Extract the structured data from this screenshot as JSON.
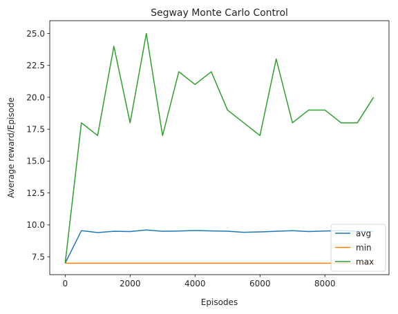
{
  "chart_data": {
    "type": "line",
    "title": "Segway Monte Carlo Control",
    "xlabel": "Episodes",
    "ylabel": "Average reward/Episode",
    "xlim": [
      -475,
      9975
    ],
    "ylim": [
      6.1,
      26.0
    ],
    "xticks": [
      0,
      2000,
      4000,
      6000,
      8000
    ],
    "xtick_labels": [
      "0",
      "2000",
      "4000",
      "6000",
      "8000"
    ],
    "yticks": [
      7.5,
      10.0,
      12.5,
      15.0,
      17.5,
      20.0,
      22.5,
      25.0
    ],
    "ytick_labels": [
      "7.5",
      "10.0",
      "12.5",
      "15.0",
      "17.5",
      "20.0",
      "22.5",
      "25.0"
    ],
    "grid": false,
    "legend_position": "lower right",
    "x": [
      0,
      500,
      1000,
      1500,
      2000,
      2500,
      3000,
      3500,
      4000,
      4500,
      5000,
      5500,
      6000,
      6500,
      7000,
      7500,
      8000,
      8500,
      9000,
      9500
    ],
    "series": [
      {
        "name": "avg",
        "color": "#1f77b4",
        "values": [
          7.0,
          9.55,
          9.4,
          9.5,
          9.48,
          9.6,
          9.5,
          9.52,
          9.56,
          9.53,
          9.51,
          9.42,
          9.45,
          9.5,
          9.55,
          9.48,
          9.52,
          9.55,
          9.5,
          9.48
        ]
      },
      {
        "name": "min",
        "color": "#ff7f0e",
        "values": [
          7.0,
          7.0,
          7.0,
          7.0,
          7.0,
          7.0,
          7.0,
          7.0,
          7.0,
          7.0,
          7.0,
          7.0,
          7.0,
          7.0,
          7.0,
          7.0,
          7.0,
          7.0,
          7.0,
          7.0
        ]
      },
      {
        "name": "max",
        "color": "#2ca02c",
        "values": [
          7.0,
          18.0,
          17.0,
          24.0,
          18.0,
          25.0,
          17.0,
          22.0,
          21.0,
          22.0,
          19.0,
          18.0,
          17.0,
          23.0,
          18.0,
          19.0,
          19.0,
          18.0,
          18.0,
          20.0
        ]
      }
    ]
  }
}
